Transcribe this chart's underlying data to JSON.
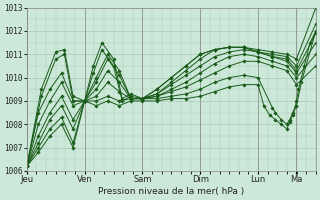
{
  "bg_color": "#cce8d8",
  "plot_bg_color": "#cce8d8",
  "line_color": "#1a5c1a",
  "grid_color": "#a8c8b8",
  "ylabel_text": "Pression niveau de la mer( hPa )",
  "ylim": [
    1006,
    1013
  ],
  "yticks": [
    1006,
    1007,
    1008,
    1009,
    1010,
    1011,
    1012,
    1013
  ],
  "xtick_labels": [
    "Jeu",
    "Ven",
    "Sam",
    "Dim",
    "Lun",
    "Ma"
  ],
  "xtick_positions": [
    0,
    0.2,
    0.4,
    0.6,
    0.8,
    0.933
  ],
  "series": [
    {
      "x": [
        0,
        0.05,
        0.1,
        0.13,
        0.16,
        0.2,
        0.23,
        0.26,
        0.3,
        0.33,
        0.36,
        0.4,
        0.45,
        0.5,
        0.55,
        0.6,
        0.65,
        0.7,
        0.75,
        0.8,
        0.85,
        0.9,
        0.933,
        1.0
      ],
      "y": [
        1006.2,
        1009.5,
        1011.1,
        1011.2,
        1009.2,
        1009.0,
        1010.5,
        1011.5,
        1010.8,
        1009.1,
        1009.3,
        1009.1,
        1009.5,
        1010.0,
        1010.5,
        1011.0,
        1011.2,
        1011.3,
        1011.3,
        1011.2,
        1011.1,
        1011.0,
        1010.8,
        1013.0
      ]
    },
    {
      "x": [
        0,
        0.05,
        0.1,
        0.13,
        0.16,
        0.2,
        0.23,
        0.26,
        0.3,
        0.33,
        0.36,
        0.4,
        0.45,
        0.5,
        0.55,
        0.6,
        0.65,
        0.7,
        0.75,
        0.8,
        0.85,
        0.9,
        0.933,
        1.0
      ],
      "y": [
        1006.2,
        1009.2,
        1010.8,
        1011.0,
        1009.0,
        1009.0,
        1010.2,
        1011.2,
        1010.5,
        1009.0,
        1009.2,
        1009.1,
        1009.5,
        1010.0,
        1010.5,
        1011.0,
        1011.2,
        1011.3,
        1011.3,
        1011.1,
        1011.0,
        1010.9,
        1010.5,
        1012.3
      ]
    },
    {
      "x": [
        0,
        0.04,
        0.08,
        0.12,
        0.16,
        0.2,
        0.24,
        0.28,
        0.32,
        0.36,
        0.4,
        0.45,
        0.5,
        0.55,
        0.6,
        0.65,
        0.7,
        0.75,
        0.8,
        0.85,
        0.9,
        0.933,
        1.0
      ],
      "y": [
        1006.2,
        1008.5,
        1009.5,
        1010.2,
        1009.0,
        1009.0,
        1010.0,
        1011.0,
        1010.3,
        1009.1,
        1009.1,
        1009.3,
        1009.8,
        1010.3,
        1010.8,
        1011.2,
        1011.3,
        1011.3,
        1011.1,
        1010.9,
        1010.8,
        1010.3,
        1011.9
      ]
    },
    {
      "x": [
        0,
        0.04,
        0.08,
        0.12,
        0.16,
        0.2,
        0.24,
        0.28,
        0.32,
        0.36,
        0.4,
        0.45,
        0.5,
        0.55,
        0.6,
        0.65,
        0.7,
        0.75,
        0.8,
        0.85,
        0.9,
        0.933,
        1.0
      ],
      "y": [
        1006.2,
        1008.0,
        1009.0,
        1009.8,
        1008.8,
        1009.0,
        1009.8,
        1010.8,
        1010.1,
        1009.1,
        1009.1,
        1009.3,
        1009.7,
        1010.1,
        1010.5,
        1010.9,
        1011.1,
        1011.2,
        1011.1,
        1010.9,
        1010.7,
        1010.2,
        1011.5
      ]
    },
    {
      "x": [
        0,
        0.04,
        0.08,
        0.12,
        0.16,
        0.2,
        0.24,
        0.28,
        0.32,
        0.36,
        0.4,
        0.45,
        0.5,
        0.55,
        0.6,
        0.65,
        0.7,
        0.75,
        0.8,
        0.85,
        0.9,
        0.933,
        1.0
      ],
      "y": [
        1006.2,
        1007.5,
        1008.5,
        1009.2,
        1008.2,
        1009.0,
        1009.5,
        1010.3,
        1009.8,
        1009.1,
        1009.1,
        1009.2,
        1009.5,
        1009.8,
        1010.2,
        1010.6,
        1010.9,
        1011.0,
        1010.9,
        1010.7,
        1010.5,
        1010.0,
        1011.0
      ]
    },
    {
      "x": [
        0,
        0.04,
        0.08,
        0.12,
        0.16,
        0.2,
        0.24,
        0.28,
        0.32,
        0.36,
        0.4,
        0.45,
        0.5,
        0.55,
        0.6,
        0.65,
        0.7,
        0.75,
        0.8,
        0.85,
        0.9,
        0.933,
        1.0
      ],
      "y": [
        1006.2,
        1007.2,
        1008.2,
        1008.8,
        1007.8,
        1009.0,
        1009.2,
        1009.8,
        1009.4,
        1009.1,
        1009.1,
        1009.2,
        1009.4,
        1009.6,
        1009.9,
        1010.2,
        1010.5,
        1010.7,
        1010.7,
        1010.5,
        1010.3,
        1009.7,
        1010.5
      ]
    },
    {
      "x": [
        0,
        0.04,
        0.08,
        0.12,
        0.16,
        0.2,
        0.24,
        0.28,
        0.32,
        0.36,
        0.4,
        0.45,
        0.5,
        0.55,
        0.6,
        0.65,
        0.7,
        0.75,
        0.8,
        0.85,
        0.86,
        0.88,
        0.9,
        0.91,
        0.92,
        0.93,
        0.933,
        0.94,
        0.96,
        0.98,
        1.0
      ],
      "y": [
        1006.2,
        1007.0,
        1007.8,
        1008.3,
        1007.2,
        1009.0,
        1009.0,
        1009.2,
        1009.0,
        1009.1,
        1009.1,
        1009.1,
        1009.2,
        1009.3,
        1009.5,
        1009.8,
        1010.0,
        1010.1,
        1010.0,
        1008.7,
        1008.5,
        1008.2,
        1008.0,
        1008.2,
        1008.5,
        1008.8,
        1009.0,
        1009.5,
        1010.5,
        1011.5,
        1012.0
      ]
    },
    {
      "x": [
        0,
        0.04,
        0.08,
        0.12,
        0.16,
        0.2,
        0.24,
        0.28,
        0.32,
        0.36,
        0.4,
        0.45,
        0.5,
        0.55,
        0.6,
        0.65,
        0.7,
        0.75,
        0.8,
        0.82,
        0.84,
        0.86,
        0.88,
        0.9,
        0.91,
        0.92,
        0.933,
        0.95,
        1.0
      ],
      "y": [
        1006.2,
        1006.8,
        1007.5,
        1008.0,
        1007.0,
        1009.0,
        1008.8,
        1009.0,
        1008.8,
        1009.0,
        1009.0,
        1009.0,
        1009.1,
        1009.1,
        1009.2,
        1009.4,
        1009.6,
        1009.7,
        1009.7,
        1008.8,
        1008.4,
        1008.2,
        1008.0,
        1007.8,
        1008.1,
        1008.4,
        1008.8,
        1009.8,
        1012.0
      ]
    }
  ]
}
